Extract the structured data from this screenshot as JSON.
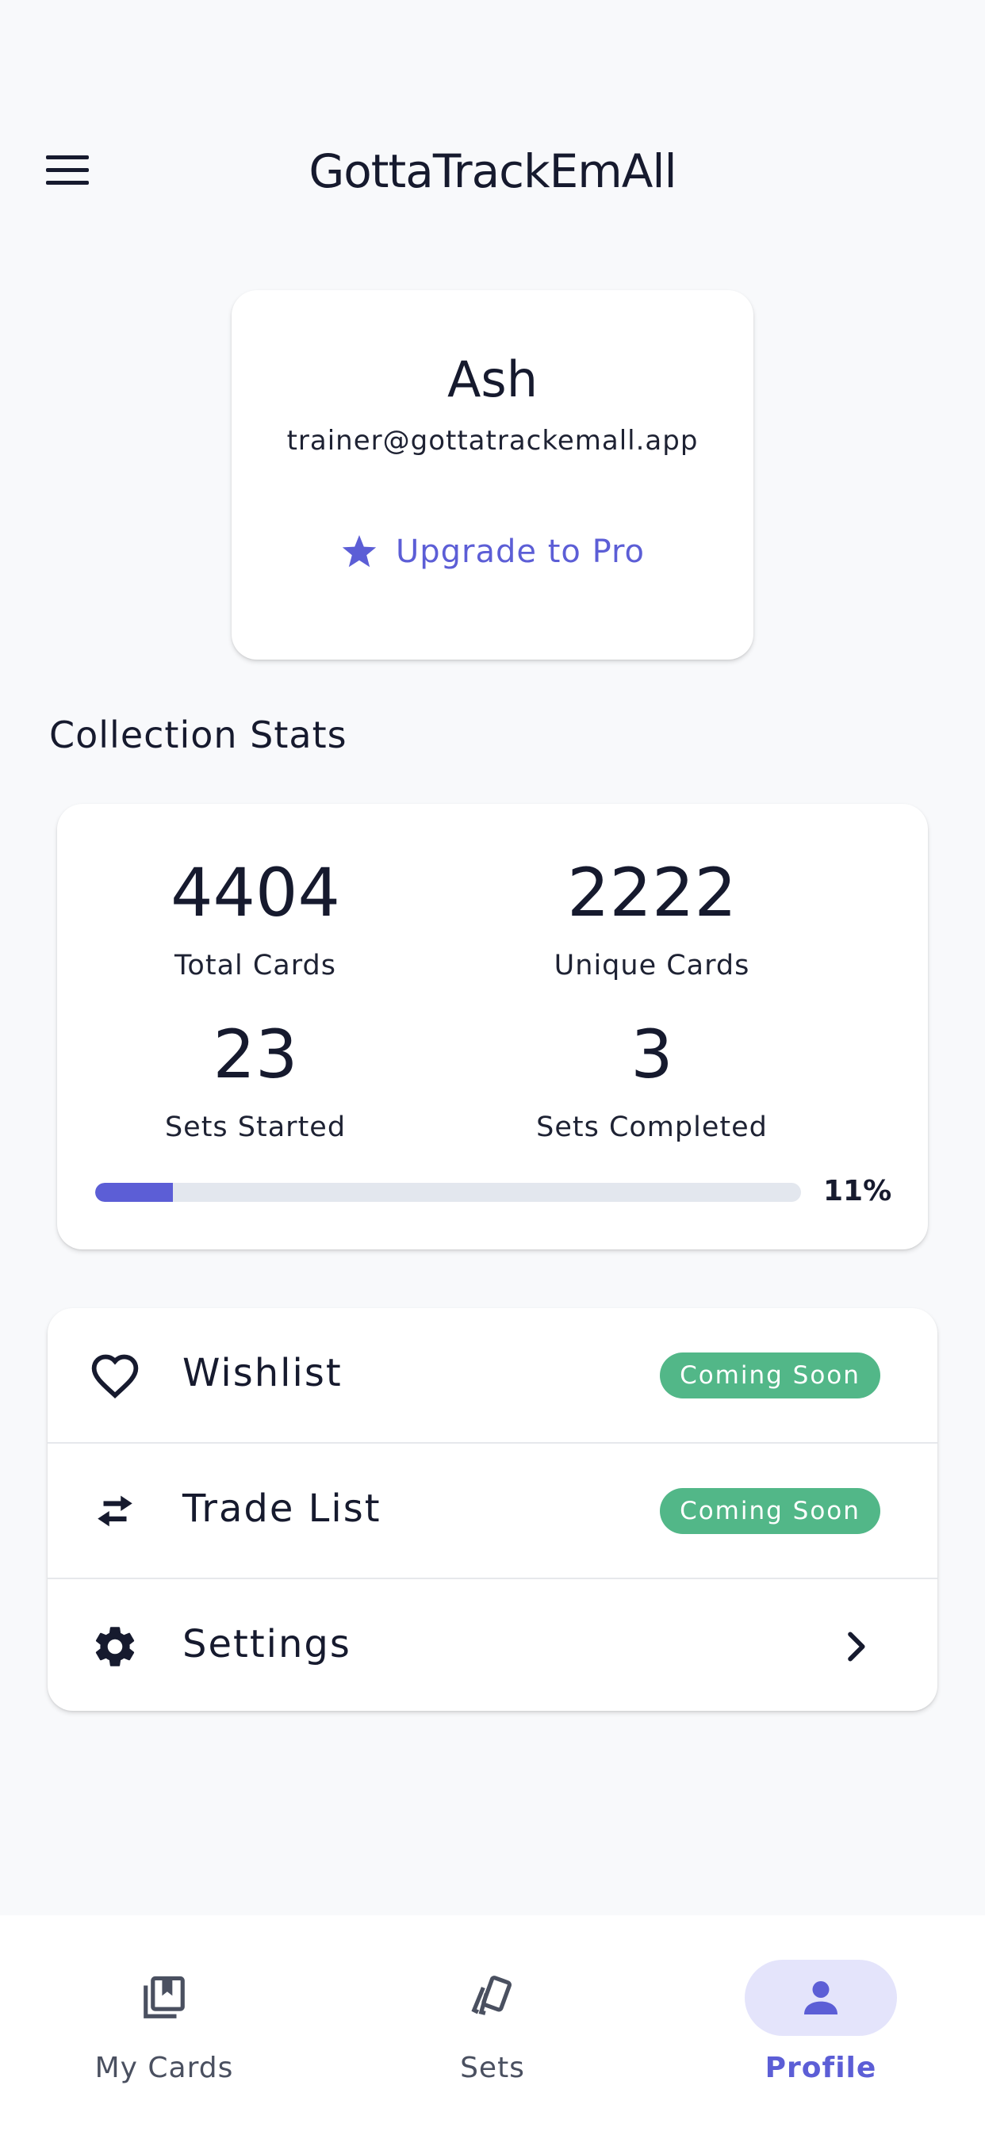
{
  "app_bar": {
    "title": "GottaTrackEmAll",
    "menu_icon": "menu-icon"
  },
  "profile": {
    "name": "Ash",
    "email": "trainer@gottatrackemall.app",
    "upgrade_label": "Upgrade to Pro",
    "upgrade_icon": "star-icon",
    "accent_color": "#5c5ed6"
  },
  "stats": {
    "section_title": "Collection Stats",
    "items": [
      {
        "value": "4404",
        "label": "Total Cards"
      },
      {
        "value": "2222",
        "label": "Unique Cards"
      },
      {
        "value": "23",
        "label": "Sets Started"
      },
      {
        "value": "3",
        "label": "Sets Completed"
      }
    ],
    "progress_percent": 11,
    "progress_label": "11%"
  },
  "menu": {
    "items": [
      {
        "label": "Wishlist",
        "icon": "heart-icon",
        "badge": "Coming Soon"
      },
      {
        "label": "Trade List",
        "icon": "swap-arrows-icon",
        "badge": "Coming Soon"
      },
      {
        "label": "Settings",
        "icon": "gear-icon",
        "trailing_icon": "chevron-right-icon"
      }
    ],
    "badge_color": "#52b788"
  },
  "bottom_nav": {
    "items": [
      {
        "label": "My Cards",
        "icon": "card-collection-icon",
        "active": false
      },
      {
        "label": "Sets",
        "icon": "cards-set-icon",
        "active": false
      },
      {
        "label": "Profile",
        "icon": "person-icon",
        "active": true
      }
    ]
  }
}
